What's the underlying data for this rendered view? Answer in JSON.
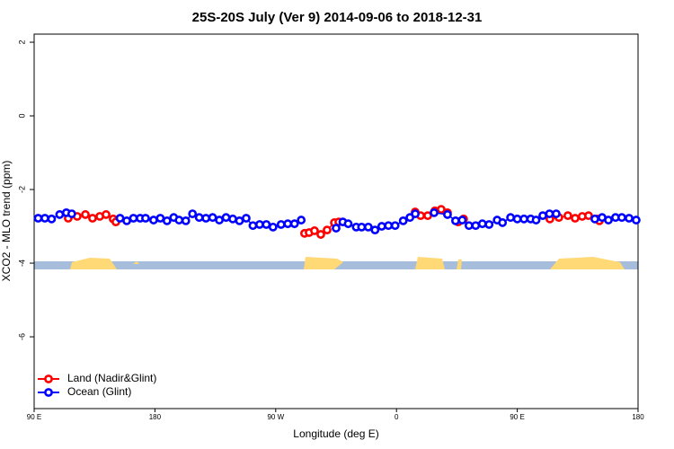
{
  "chart_data": {
    "type": "line",
    "title": "25S-20S July (Ver 9)   2014-09-06 to 2018-12-31",
    "x_label": "Longitude (deg E)",
    "y_label": "XCO2 - MLO trend (ppm)",
    "xlim": [
      90,
      540
    ],
    "ylim": [
      -7.95,
      2.22
    ],
    "xticks": [
      {
        "value": 90,
        "label": "90 E"
      },
      180,
      {
        "value": 270,
        "label": "90 W"
      },
      {
        "value": 360,
        "label": "0"
      },
      {
        "value": 450,
        "label": "90 E"
      },
      {
        "value": 540,
        "label": "180"
      }
    ],
    "yticks": [
      2,
      0,
      -2,
      -4,
      -6
    ],
    "legend": "bottom-left",
    "series": [
      {
        "name": "Land (Nadir&Glint)",
        "color": "#ff0000",
        "x": [
          115.4,
          122.1,
          128.2,
          133.5,
          138.9,
          143.6,
          148.9,
          150.9,
          null,
          291.5,
          294.9,
          298.9,
          303.6,
          308.3,
          313.7,
          317,
          null,
          373.9,
          378,
          383.3,
          388.6,
          393.3,
          398,
          null,
          406,
          410,
          null,
          474.3,
          481,
          487.7,
          493.1,
          498.4,
          503.1,
          509.2,
          511.2
        ],
        "values": [
          -2.78,
          -2.73,
          -2.68,
          -2.78,
          -2.73,
          -2.68,
          -2.8,
          -2.88,
          null,
          -3.19,
          -3.17,
          -3.12,
          -3.22,
          -3.1,
          -2.9,
          -2.88,
          null,
          -2.61,
          -2.71,
          -2.71,
          -2.58,
          -2.54,
          -2.63,
          null,
          -2.88,
          -2.8,
          null,
          -2.8,
          -2.76,
          -2.71,
          -2.78,
          -2.73,
          -2.71,
          -2.8,
          -2.85
        ]
      },
      {
        "name": "Ocean (Glint)",
        "color": "#0000ff",
        "x": [
          93,
          98,
          103,
          109,
          114,
          118,
          null,
          154,
          159,
          164,
          169,
          173,
          179,
          184,
          189,
          194,
          198,
          203,
          208,
          213,
          218,
          223,
          228,
          233,
          238,
          243,
          248,
          253,
          258,
          263,
          268,
          274,
          279,
          284,
          289,
          null,
          315,
          320,
          324,
          330,
          334,
          339,
          344,
          349,
          354,
          359,
          365,
          370,
          374,
          null,
          388,
          398,
          404,
          409,
          414,
          419,
          424,
          429,
          435,
          439,
          445,
          450,
          455,
          460,
          464,
          469,
          474,
          479,
          null,
          507.8,
          513.2,
          517.9,
          523.2,
          527.9,
          533.3,
          538.6
        ],
        "values": [
          -2.78,
          -2.78,
          -2.8,
          -2.68,
          -2.63,
          -2.66,
          null,
          -2.78,
          -2.85,
          -2.78,
          -2.78,
          -2.78,
          -2.83,
          -2.78,
          -2.85,
          -2.76,
          -2.83,
          -2.85,
          -2.66,
          -2.76,
          -2.78,
          -2.76,
          -2.83,
          -2.76,
          -2.8,
          -2.85,
          -2.78,
          -2.98,
          -2.95,
          -2.95,
          -3.02,
          -2.95,
          -2.93,
          -2.93,
          -2.83,
          null,
          -3.05,
          -2.88,
          -2.93,
          -3.02,
          -3.02,
          -3.02,
          -3.1,
          -3.0,
          -2.98,
          -2.98,
          -2.85,
          -2.76,
          -2.66,
          null,
          -2.63,
          -2.68,
          -2.85,
          -2.83,
          -2.98,
          -2.98,
          -2.93,
          -2.95,
          -2.83,
          -2.9,
          -2.76,
          -2.8,
          -2.8,
          -2.8,
          -2.83,
          -2.71,
          -2.66,
          -2.66,
          null,
          -2.8,
          -2.76,
          -2.83,
          -2.76,
          -2.76,
          -2.78,
          -2.83
        ]
      }
    ]
  }
}
